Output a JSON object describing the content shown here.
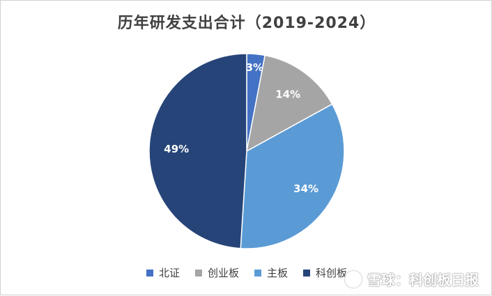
{
  "chart_data": {
    "type": "pie",
    "title": "历年研发支出合计（2019-2024）",
    "categories": [
      "北证",
      "创业板",
      "主板",
      "科创板"
    ],
    "values": [
      3,
      14,
      34,
      49
    ],
    "data_labels": [
      "3%",
      "14%",
      "34%",
      "49%"
    ],
    "colors": [
      "#4472c4",
      "#a5a5a5",
      "#5b9bd5",
      "#264478"
    ],
    "legend_position": "bottom"
  },
  "watermark": {
    "text": "雪球：科创板日报",
    "icon": "snowball-logo-icon"
  }
}
